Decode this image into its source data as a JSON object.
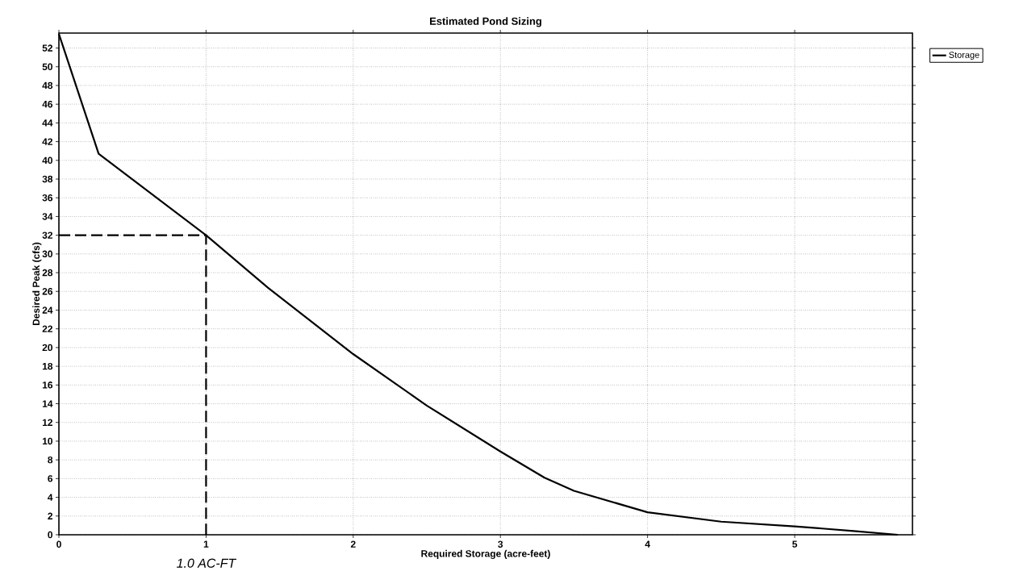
{
  "chart_data": {
    "type": "line",
    "title": "Estimated Pond Sizing",
    "xlabel": "Required Storage  (acre-feet)",
    "ylabel": "Desired Peak  (cfs)",
    "xlim": [
      0,
      5.8
    ],
    "ylim": [
      0,
      53.6
    ],
    "xticks": [
      0,
      1,
      2,
      3,
      4,
      5
    ],
    "yticks": [
      0,
      2,
      4,
      6,
      8,
      10,
      12,
      14,
      16,
      18,
      20,
      22,
      24,
      26,
      28,
      30,
      32,
      34,
      36,
      38,
      40,
      42,
      44,
      46,
      48,
      50,
      52
    ],
    "grid": true,
    "legend": "top right",
    "marker": "none",
    "series": [
      {
        "name": "Storage",
        "color": "#000000",
        "line_style": "solid",
        "x": [
          0,
          0.27,
          1,
          1.42,
          2,
          2.5,
          3,
          3.3,
          3.5,
          4,
          4.5,
          5,
          5.4,
          5.7
        ],
        "values": [
          53.5,
          40.7,
          32,
          26.4,
          19.3,
          13.8,
          8.9,
          6.1,
          4.7,
          2.4,
          1.4,
          0.9,
          0.4,
          0
        ]
      },
      {
        "color": "#000000",
        "line_style": "dashed",
        "x": [
          0,
          1,
          1
        ],
        "values": [
          32,
          32,
          0
        ]
      }
    ],
    "annotations": [
      {
        "text": "1.0 AC-FT",
        "x": 1,
        "y": 0
      }
    ]
  }
}
